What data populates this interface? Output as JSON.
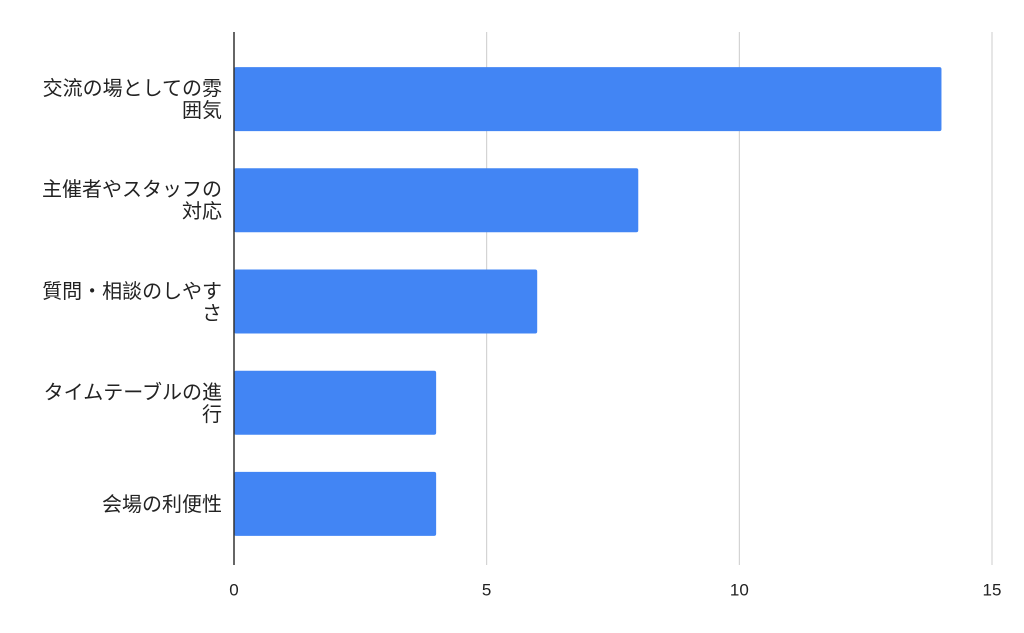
{
  "chart_data": {
    "type": "barh",
    "categories": [
      "交流の場としての雰囲気",
      "主催者やスタッフの対応",
      "質問・相談のしやすさ",
      "タイムテーブルの進行",
      "会場の利便性"
    ],
    "values": [
      14,
      8,
      6,
      4,
      4
    ],
    "color": "#4285f4",
    "xlim": [
      0,
      15
    ],
    "xticks": [
      0,
      5,
      10,
      15
    ],
    "grid": true
  }
}
